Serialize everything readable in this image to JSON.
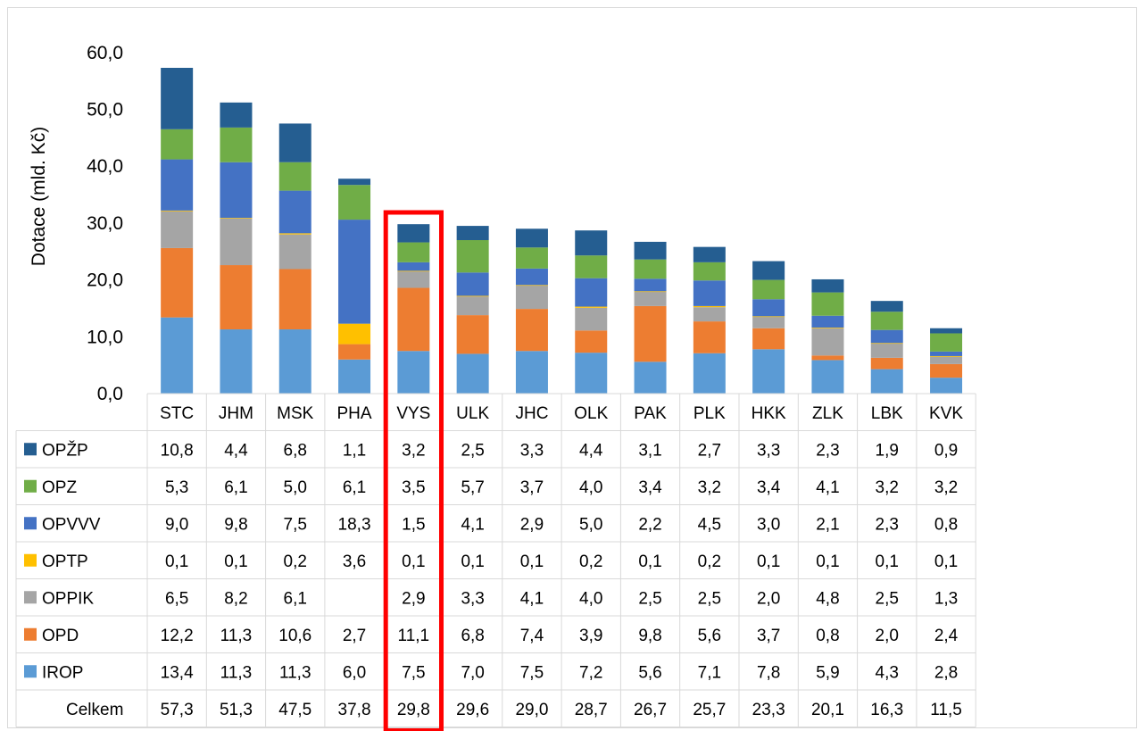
{
  "chart_data": {
    "type": "bar",
    "stacked": true,
    "ylabel": "Dotace (mld. Kč)",
    "ylim": [
      0,
      60
    ],
    "yticks": [
      "0,0",
      "10,0",
      "20,0",
      "30,0",
      "40,0",
      "50,0",
      "60,0"
    ],
    "grid": false,
    "legend": "data table",
    "categories": [
      "STC",
      "JHM",
      "MSK",
      "PHA",
      "VYS",
      "ULK",
      "JHC",
      "OLK",
      "PAK",
      "PLK",
      "HKK",
      "ZLK",
      "LBK",
      "KVK"
    ],
    "highlight_category": "VYS",
    "highlight_color": "#ff0000",
    "series": [
      {
        "name": "IROP",
        "color": "#5b9bd5",
        "values": [
          13.4,
          11.3,
          11.3,
          6.0,
          7.5,
          7.0,
          7.5,
          7.2,
          5.6,
          7.1,
          7.8,
          5.9,
          4.3,
          2.8
        ],
        "labels": [
          "13,4",
          "11,3",
          "11,3",
          "6,0",
          "7,5",
          "7,0",
          "7,5",
          "7,2",
          "5,6",
          "7,1",
          "7,8",
          "5,9",
          "4,3",
          "2,8"
        ]
      },
      {
        "name": "OPD",
        "color": "#ed7d31",
        "values": [
          12.2,
          11.3,
          10.6,
          2.7,
          11.1,
          6.8,
          7.4,
          3.9,
          9.8,
          5.6,
          3.7,
          0.8,
          2.0,
          2.4
        ],
        "labels": [
          "12,2",
          "11,3",
          "10,6",
          "2,7",
          "11,1",
          "6,8",
          "7,4",
          "3,9",
          "9,8",
          "5,6",
          "3,7",
          "0,8",
          "2,0",
          "2,4"
        ]
      },
      {
        "name": "OPPIK",
        "color": "#a5a5a5",
        "values": [
          6.5,
          8.2,
          6.1,
          0,
          2.9,
          3.3,
          4.1,
          4.0,
          2.5,
          2.5,
          2.0,
          4.8,
          2.5,
          1.3
        ],
        "labels": [
          "6,5",
          "8,2",
          "6,1",
          "",
          "2,9",
          "3,3",
          "4,1",
          "4,0",
          "2,5",
          "2,5",
          "2,0",
          "4,8",
          "2,5",
          "1,3"
        ]
      },
      {
        "name": "OPTP",
        "color": "#ffc000",
        "values": [
          0.1,
          0.1,
          0.2,
          3.6,
          0.1,
          0.1,
          0.1,
          0.2,
          0.1,
          0.2,
          0.1,
          0.1,
          0.1,
          0.1
        ],
        "labels": [
          "0,1",
          "0,1",
          "0,2",
          "3,6",
          "0,1",
          "0,1",
          "0,1",
          "0,2",
          "0,1",
          "0,2",
          "0,1",
          "0,1",
          "0,1",
          "0,1"
        ]
      },
      {
        "name": "OPVVV",
        "color": "#4472c4",
        "values": [
          9.0,
          9.8,
          7.5,
          18.3,
          1.5,
          4.1,
          2.9,
          5.0,
          2.2,
          4.5,
          3.0,
          2.1,
          2.3,
          0.8
        ],
        "labels": [
          "9,0",
          "9,8",
          "7,5",
          "18,3",
          "1,5",
          "4,1",
          "2,9",
          "5,0",
          "2,2",
          "4,5",
          "3,0",
          "2,1",
          "2,3",
          "0,8"
        ]
      },
      {
        "name": "OPZ",
        "color": "#70ad47",
        "values": [
          5.3,
          6.1,
          5.0,
          6.1,
          3.5,
          5.7,
          3.7,
          4.0,
          3.4,
          3.2,
          3.4,
          4.1,
          3.2,
          3.2
        ],
        "labels": [
          "5,3",
          "6,1",
          "5,0",
          "6,1",
          "3,5",
          "5,7",
          "3,7",
          "4,0",
          "3,4",
          "3,2",
          "3,4",
          "4,1",
          "3,2",
          "3,2"
        ]
      },
      {
        "name": "OPŽP",
        "color": "#255e91",
        "values": [
          10.8,
          4.4,
          6.8,
          1.1,
          3.2,
          2.5,
          3.3,
          4.4,
          3.1,
          2.7,
          3.3,
          2.3,
          1.9,
          0.9
        ],
        "labels": [
          "10,8",
          "4,4",
          "6,8",
          "1,1",
          "3,2",
          "2,5",
          "3,3",
          "4,4",
          "3,1",
          "2,7",
          "3,3",
          "2,3",
          "1,9",
          "0,9"
        ]
      }
    ],
    "totals": {
      "name": "Celkem",
      "values": [
        57.3,
        51.3,
        47.5,
        37.8,
        29.8,
        29.6,
        29.0,
        28.7,
        26.7,
        25.7,
        23.3,
        20.1,
        16.3,
        11.5
      ],
      "labels": [
        "57,3",
        "51,3",
        "47,5",
        "37,8",
        "29,8",
        "29,6",
        "29,0",
        "28,7",
        "26,7",
        "25,7",
        "23,3",
        "20,1",
        "16,3",
        "11,5"
      ]
    }
  }
}
